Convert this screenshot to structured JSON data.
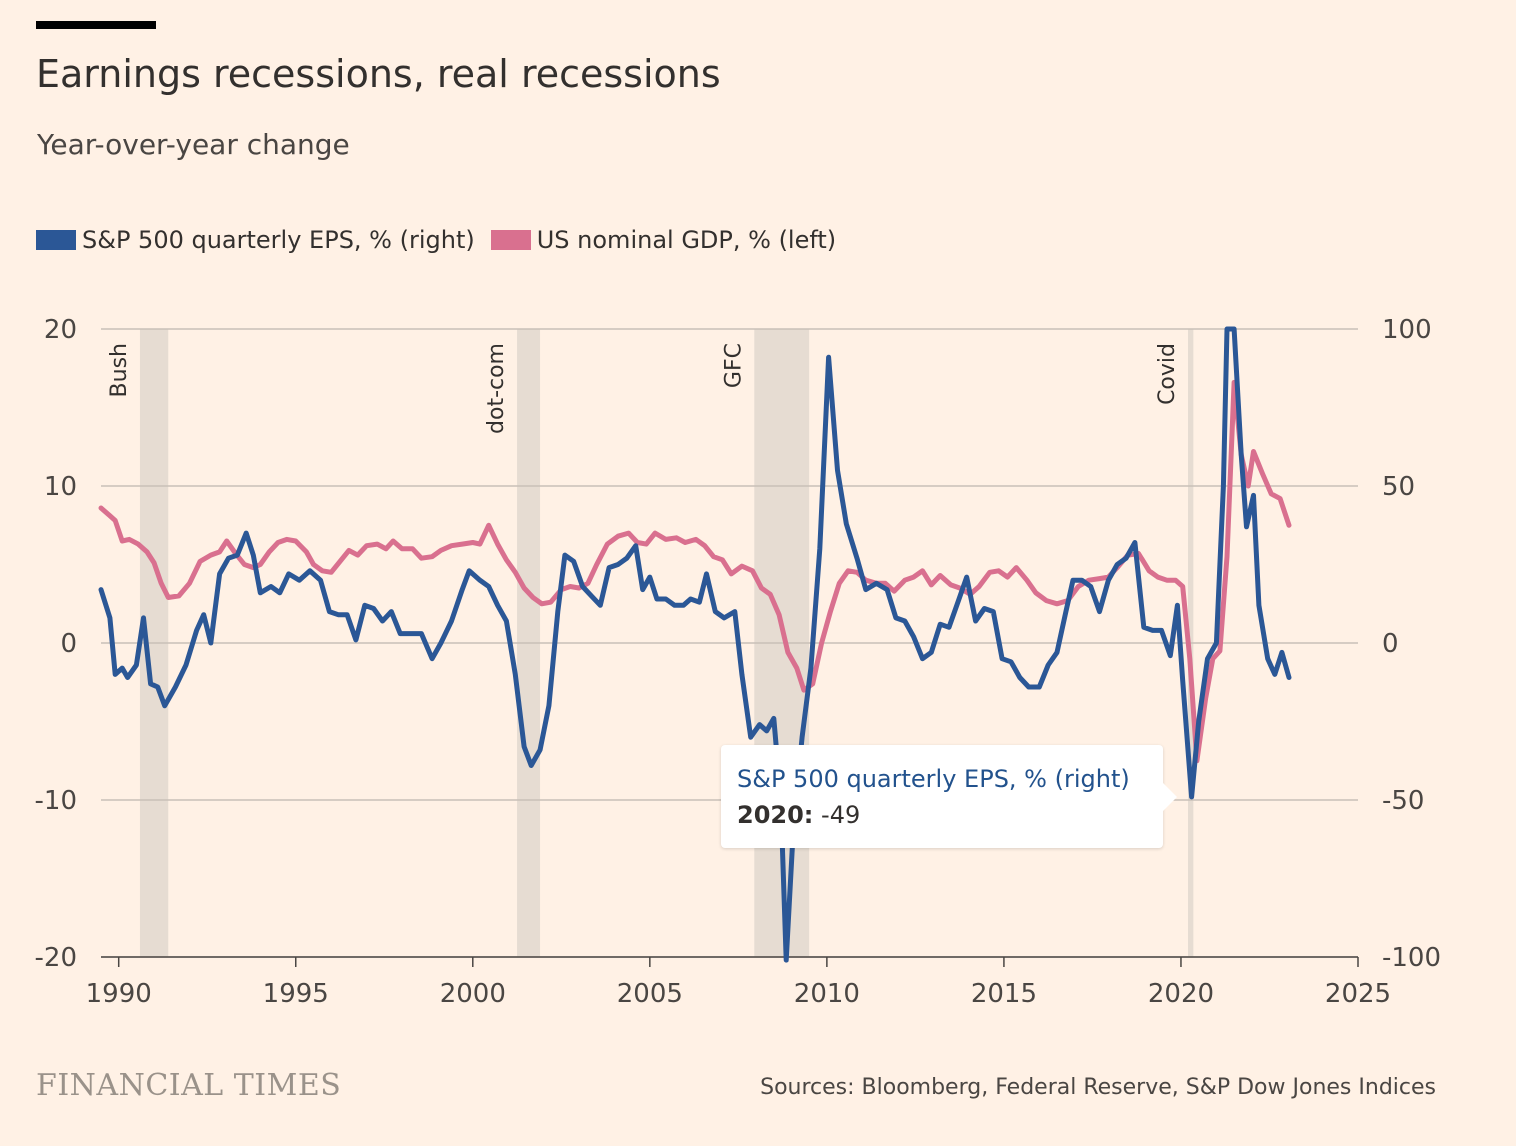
{
  "header": {
    "title": "Earnings recessions, real recessions",
    "subtitle": "Year-over-year change"
  },
  "legend": [
    {
      "label": "S&P 500 quarterly EPS, % (right)",
      "color": "#2B5796"
    },
    {
      "label": "US nominal GDP, % (left)",
      "color": "#D9708F"
    }
  ],
  "footer": {
    "brand": "FINANCIAL TIMES",
    "source": "Sources: Bloomberg, Federal Reserve, S&P Dow Jones Indices"
  },
  "tooltip": {
    "series": "S&P 500 quarterly EPS, % (right)",
    "year": "2020:",
    "value": "-49"
  },
  "colors": {
    "background": "#FFF1E5",
    "eps": "#2B5796",
    "gdp": "#D9708F",
    "recession": "#E6DCD2",
    "grid": "#C9C0B8"
  },
  "chart_data": {
    "type": "line",
    "xlim": [
      1989.5,
      2025
    ],
    "x_ticks": [
      1990,
      1995,
      2000,
      2005,
      2010,
      2015,
      2020,
      2025
    ],
    "y_left": {
      "lim": [
        -20,
        20
      ],
      "ticks": [
        "20",
        "10",
        "0",
        "-10",
        "-20"
      ]
    },
    "y_right": {
      "lim": [
        -100,
        100
      ],
      "ticks": [
        "100",
        "50",
        "0",
        "-50",
        "-100"
      ]
    },
    "grid": true,
    "legend_position": "top-left",
    "recessions": [
      {
        "label": "Bush",
        "start": 1990.6,
        "end": 1991.4
      },
      {
        "label": "dot-com",
        "start": 2001.25,
        "end": 2001.9
      },
      {
        "label": "GFC",
        "start": 2007.95,
        "end": 2009.5
      },
      {
        "label": "Covid",
        "start": 2020.2,
        "end": 2020.35
      }
    ],
    "series": [
      {
        "name": "S&P 500 quarterly EPS, % (right)",
        "axis": "right",
        "points": [
          [
            1989.5,
            17
          ],
          [
            1989.75,
            8
          ],
          [
            1989.9,
            -10
          ],
          [
            1990.1,
            -8
          ],
          [
            1990.25,
            -11
          ],
          [
            1990.5,
            -7
          ],
          [
            1990.7,
            8
          ],
          [
            1990.9,
            -13
          ],
          [
            1991.1,
            -14
          ],
          [
            1991.3,
            -20
          ],
          [
            1991.6,
            -14
          ],
          [
            1991.9,
            -7
          ],
          [
            1992.2,
            4
          ],
          [
            1992.4,
            9
          ],
          [
            1992.6,
            0
          ],
          [
            1992.85,
            22
          ],
          [
            1993.1,
            27
          ],
          [
            1993.35,
            28
          ],
          [
            1993.6,
            35
          ],
          [
            1993.8,
            28
          ],
          [
            1994.0,
            16
          ],
          [
            1994.3,
            18
          ],
          [
            1994.55,
            16
          ],
          [
            1994.8,
            22
          ],
          [
            1995.1,
            20
          ],
          [
            1995.4,
            23
          ],
          [
            1995.7,
            20
          ],
          [
            1995.95,
            10
          ],
          [
            1996.2,
            9
          ],
          [
            1996.45,
            9
          ],
          [
            1996.7,
            1
          ],
          [
            1996.95,
            12
          ],
          [
            1997.2,
            11
          ],
          [
            1997.45,
            7
          ],
          [
            1997.7,
            10
          ],
          [
            1997.95,
            3
          ],
          [
            1998.2,
            3
          ],
          [
            1998.55,
            3
          ],
          [
            1998.85,
            -5
          ],
          [
            1999.1,
            0
          ],
          [
            1999.4,
            7
          ],
          [
            1999.7,
            17
          ],
          [
            1999.9,
            23
          ],
          [
            2000.2,
            20
          ],
          [
            2000.45,
            18
          ],
          [
            2000.7,
            12
          ],
          [
            2000.95,
            7
          ],
          [
            2001.2,
            -10
          ],
          [
            2001.45,
            -33
          ],
          [
            2001.65,
            -39
          ],
          [
            2001.9,
            -34
          ],
          [
            2002.15,
            -20
          ],
          [
            2002.4,
            10
          ],
          [
            2002.6,
            28
          ],
          [
            2002.85,
            26
          ],
          [
            2003.1,
            18
          ],
          [
            2003.35,
            15
          ],
          [
            2003.6,
            12
          ],
          [
            2003.85,
            24
          ],
          [
            2004.1,
            25
          ],
          [
            2004.35,
            27
          ],
          [
            2004.6,
            31
          ],
          [
            2004.8,
            17
          ],
          [
            2005.0,
            21
          ],
          [
            2005.2,
            14
          ],
          [
            2005.45,
            14
          ],
          [
            2005.7,
            12
          ],
          [
            2005.95,
            12
          ],
          [
            2006.15,
            14
          ],
          [
            2006.4,
            13
          ],
          [
            2006.6,
            22
          ],
          [
            2006.85,
            10
          ],
          [
            2007.1,
            8
          ],
          [
            2007.4,
            10
          ],
          [
            2007.6,
            -10
          ],
          [
            2007.85,
            -30
          ],
          [
            2008.1,
            -26
          ],
          [
            2008.3,
            -28
          ],
          [
            2008.5,
            -24
          ],
          [
            2008.7,
            -50
          ],
          [
            2008.85,
            -101
          ],
          [
            2009.05,
            -60
          ],
          [
            2009.3,
            -30
          ],
          [
            2009.55,
            -8
          ],
          [
            2009.8,
            30
          ],
          [
            2010.05,
            91
          ],
          [
            2010.3,
            55
          ],
          [
            2010.55,
            38
          ],
          [
            2010.85,
            27
          ],
          [
            2011.1,
            17
          ],
          [
            2011.4,
            19
          ],
          [
            2011.7,
            17
          ],
          [
            2011.95,
            8
          ],
          [
            2012.2,
            7
          ],
          [
            2012.45,
            2
          ],
          [
            2012.7,
            -5
          ],
          [
            2012.95,
            -3
          ],
          [
            2013.2,
            6
          ],
          [
            2013.45,
            5
          ],
          [
            2013.7,
            13
          ],
          [
            2013.95,
            21
          ],
          [
            2014.2,
            7
          ],
          [
            2014.45,
            11
          ],
          [
            2014.7,
            10
          ],
          [
            2014.95,
            -5
          ],
          [
            2015.2,
            -6
          ],
          [
            2015.45,
            -11
          ],
          [
            2015.7,
            -14
          ],
          [
            2016.0,
            -14
          ],
          [
            2016.25,
            -7
          ],
          [
            2016.5,
            -3
          ],
          [
            2016.75,
            10
          ],
          [
            2016.95,
            20
          ],
          [
            2017.2,
            20
          ],
          [
            2017.45,
            18
          ],
          [
            2017.7,
            10
          ],
          [
            2017.95,
            20
          ],
          [
            2018.2,
            25
          ],
          [
            2018.45,
            27
          ],
          [
            2018.7,
            32
          ],
          [
            2018.95,
            5
          ],
          [
            2019.2,
            4
          ],
          [
            2019.45,
            4
          ],
          [
            2019.7,
            -4
          ],
          [
            2019.9,
            12
          ],
          [
            2020.05,
            -12
          ],
          [
            2020.3,
            -49
          ],
          [
            2020.5,
            -25
          ],
          [
            2020.75,
            -5
          ],
          [
            2021.0,
            0
          ],
          [
            2021.2,
            50
          ],
          [
            2021.3,
            100
          ],
          [
            2021.5,
            100
          ],
          [
            2021.7,
            60
          ],
          [
            2021.85,
            37
          ],
          [
            2022.05,
            47
          ],
          [
            2022.2,
            12
          ],
          [
            2022.45,
            -5
          ],
          [
            2022.65,
            -10
          ],
          [
            2022.85,
            -3
          ],
          [
            2023.05,
            -11
          ]
        ]
      },
      {
        "name": "US nominal GDP, % (left)",
        "axis": "left",
        "points": [
          [
            1989.5,
            8.6
          ],
          [
            1989.75,
            8.1
          ],
          [
            1989.9,
            7.8
          ],
          [
            1990.1,
            6.5
          ],
          [
            1990.3,
            6.6
          ],
          [
            1990.55,
            6.3
          ],
          [
            1990.8,
            5.8
          ],
          [
            1991.0,
            5.1
          ],
          [
            1991.2,
            3.8
          ],
          [
            1991.4,
            2.9
          ],
          [
            1991.7,
            3.0
          ],
          [
            1992.0,
            3.8
          ],
          [
            1992.3,
            5.2
          ],
          [
            1992.6,
            5.6
          ],
          [
            1992.85,
            5.8
          ],
          [
            1993.05,
            6.5
          ],
          [
            1993.3,
            5.7
          ],
          [
            1993.55,
            5.0
          ],
          [
            1993.8,
            4.8
          ],
          [
            1994.0,
            5.0
          ],
          [
            1994.25,
            5.8
          ],
          [
            1994.5,
            6.4
          ],
          [
            1994.75,
            6.6
          ],
          [
            1995.0,
            6.5
          ],
          [
            1995.3,
            5.8
          ],
          [
            1995.5,
            5.0
          ],
          [
            1995.75,
            4.6
          ],
          [
            1996.0,
            4.5
          ],
          [
            1996.25,
            5.2
          ],
          [
            1996.5,
            5.9
          ],
          [
            1996.75,
            5.6
          ],
          [
            1997.0,
            6.2
          ],
          [
            1997.3,
            6.3
          ],
          [
            1997.55,
            6.0
          ],
          [
            1997.75,
            6.5
          ],
          [
            1998.0,
            6.0
          ],
          [
            1998.3,
            6.0
          ],
          [
            1998.55,
            5.4
          ],
          [
            1998.85,
            5.5
          ],
          [
            1999.1,
            5.9
          ],
          [
            1999.4,
            6.2
          ],
          [
            1999.7,
            6.3
          ],
          [
            2000.0,
            6.4
          ],
          [
            2000.2,
            6.3
          ],
          [
            2000.45,
            7.5
          ],
          [
            2000.7,
            6.3
          ],
          [
            2000.95,
            5.3
          ],
          [
            2001.2,
            4.5
          ],
          [
            2001.45,
            3.5
          ],
          [
            2001.7,
            2.9
          ],
          [
            2001.95,
            2.5
          ],
          [
            2002.2,
            2.6
          ],
          [
            2002.5,
            3.4
          ],
          [
            2002.75,
            3.6
          ],
          [
            2003.0,
            3.5
          ],
          [
            2003.25,
            3.8
          ],
          [
            2003.5,
            5.0
          ],
          [
            2003.8,
            6.3
          ],
          [
            2004.1,
            6.8
          ],
          [
            2004.4,
            7.0
          ],
          [
            2004.65,
            6.4
          ],
          [
            2004.9,
            6.3
          ],
          [
            2005.15,
            7.0
          ],
          [
            2005.45,
            6.6
          ],
          [
            2005.75,
            6.7
          ],
          [
            2006.0,
            6.4
          ],
          [
            2006.3,
            6.6
          ],
          [
            2006.55,
            6.2
          ],
          [
            2006.8,
            5.5
          ],
          [
            2007.05,
            5.3
          ],
          [
            2007.3,
            4.4
          ],
          [
            2007.6,
            4.9
          ],
          [
            2007.9,
            4.6
          ],
          [
            2008.15,
            3.5
          ],
          [
            2008.4,
            3.1
          ],
          [
            2008.65,
            1.8
          ],
          [
            2008.9,
            -0.6
          ],
          [
            2009.15,
            -1.6
          ],
          [
            2009.35,
            -3.0
          ],
          [
            2009.6,
            -2.6
          ],
          [
            2009.85,
            0.0
          ],
          [
            2010.1,
            2.0
          ],
          [
            2010.35,
            3.8
          ],
          [
            2010.6,
            4.6
          ],
          [
            2010.85,
            4.5
          ],
          [
            2011.1,
            4.0
          ],
          [
            2011.4,
            3.8
          ],
          [
            2011.65,
            3.8
          ],
          [
            2011.9,
            3.3
          ],
          [
            2012.2,
            4.0
          ],
          [
            2012.45,
            4.2
          ],
          [
            2012.7,
            4.6
          ],
          [
            2012.95,
            3.7
          ],
          [
            2013.2,
            4.3
          ],
          [
            2013.5,
            3.7
          ],
          [
            2013.75,
            3.5
          ],
          [
            2014.05,
            3.1
          ],
          [
            2014.3,
            3.6
          ],
          [
            2014.6,
            4.5
          ],
          [
            2014.85,
            4.6
          ],
          [
            2015.1,
            4.2
          ],
          [
            2015.35,
            4.8
          ],
          [
            2015.65,
            4.0
          ],
          [
            2015.9,
            3.2
          ],
          [
            2016.2,
            2.7
          ],
          [
            2016.5,
            2.5
          ],
          [
            2016.8,
            2.7
          ],
          [
            2017.1,
            3.6
          ],
          [
            2017.4,
            4.0
          ],
          [
            2017.7,
            4.1
          ],
          [
            2017.95,
            4.2
          ],
          [
            2018.2,
            4.8
          ],
          [
            2018.5,
            5.6
          ],
          [
            2018.8,
            5.7
          ],
          [
            2019.1,
            4.6
          ],
          [
            2019.35,
            4.2
          ],
          [
            2019.6,
            4.0
          ],
          [
            2019.85,
            4.0
          ],
          [
            2020.05,
            3.6
          ],
          [
            2020.25,
            -1.0
          ],
          [
            2020.45,
            -7.5
          ],
          [
            2020.7,
            -3.5
          ],
          [
            2020.9,
            -1.0
          ],
          [
            2021.1,
            -0.5
          ],
          [
            2021.3,
            5.5
          ],
          [
            2021.5,
            16.6
          ],
          [
            2021.7,
            12.0
          ],
          [
            2021.9,
            10.0
          ],
          [
            2022.05,
            12.2
          ],
          [
            2022.3,
            10.8
          ],
          [
            2022.55,
            9.5
          ],
          [
            2022.8,
            9.2
          ],
          [
            2023.05,
            7.5
          ]
        ]
      }
    ]
  }
}
